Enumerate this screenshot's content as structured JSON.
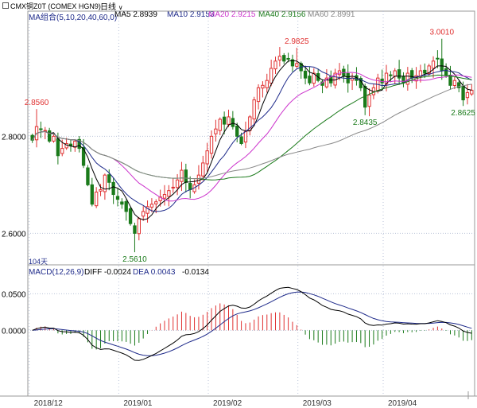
{
  "header": {
    "instrument": "CMX铜Z0T (COMEX HGN9)",
    "period": "日线",
    "period_arrow": "∨"
  },
  "ma_legend": [
    {
      "label": "MA组合(5,10,20,40,60,0)",
      "color": "#1e2a8a"
    },
    {
      "label": "MA5 2.8939",
      "color": "#000000"
    },
    {
      "label": "MA10 2.9153",
      "color": "#1e2a8a"
    },
    {
      "label": "MA20 2.9215",
      "color": "#cc33cc"
    },
    {
      "label": "MA40 2.9156",
      "color": "#1a7a1a"
    },
    {
      "label": "MA60 2.8991",
      "color": "#888888"
    }
  ],
  "macd_legend": [
    {
      "label": "MACD(12,26,9)",
      "color": "#1e2a8a"
    },
    {
      "label": "DIFF -0.0024",
      "color": "#000000"
    },
    {
      "label": "DEA 0.0043",
      "color": "#1e2a8a"
    },
    {
      "label": "-0.0134",
      "color": "#000000"
    }
  ],
  "price_axis": {
    "ticks": [
      "2.8000",
      "2.6000"
    ],
    "values": [
      2.8,
      2.6
    ],
    "ylim": [
      2.535,
      3.035
    ]
  },
  "macd_axis": {
    "ticks": [
      "0.0500",
      "0.0000"
    ],
    "values": [
      0.05,
      0.0
    ],
    "ylim": [
      -0.09,
      0.07
    ]
  },
  "x_axis": {
    "labels": [
      "2018/12",
      "2019/01",
      "2019/02",
      "2019/03",
      "2019/04"
    ],
    "label_index": [
      0,
      21,
      42,
      63,
      83
    ],
    "count": 104
  },
  "bar_count_label": "104天",
  "annotations": [
    {
      "text": "2.8560",
      "index": 1,
      "value": 2.856,
      "color": "#e03030",
      "pos": "above"
    },
    {
      "text": "2.5610",
      "index": 24,
      "value": 2.561,
      "color": "#1a7a1a",
      "pos": "below"
    },
    {
      "text": "2.9825",
      "index": 62,
      "value": 2.9825,
      "color": "#e03030",
      "pos": "above"
    },
    {
      "text": "2.8435",
      "index": 78,
      "value": 2.8435,
      "color": "#1a7a1a",
      "pos": "below"
    },
    {
      "text": "3.0010",
      "index": 96,
      "value": 3.001,
      "color": "#e03030",
      "pos": "above"
    },
    {
      "text": "2.8625",
      "index": 101,
      "value": 2.8625,
      "color": "#1a7a1a",
      "pos": "below"
    }
  ],
  "colors": {
    "up": "#e03030",
    "down": "#1a7a1a",
    "grid": "#b9c3d8",
    "axis": "#777777",
    "diff": "#000000",
    "dea": "#1e2a8a"
  },
  "chart_data": {
    "type": "candlestick",
    "title": "CMX铜Z0T (COMEX HGN9) 日线",
    "close": [
      2.792,
      2.82,
      2.815,
      2.812,
      2.79,
      2.8,
      2.76,
      2.775,
      2.785,
      2.78,
      2.79,
      2.775,
      2.74,
      2.7,
      2.66,
      2.685,
      2.69,
      2.72,
      2.705,
      2.68,
      2.67,
      2.66,
      2.645,
      2.62,
      2.6,
      2.63,
      2.645,
      2.655,
      2.66,
      2.665,
      2.675,
      2.68,
      2.688,
      2.695,
      2.71,
      2.73,
      2.705,
      2.69,
      2.7,
      2.72,
      2.745,
      2.77,
      2.8,
      2.815,
      2.835,
      2.825,
      2.84,
      2.82,
      2.8,
      2.785,
      2.81,
      2.84,
      2.875,
      2.9,
      2.905,
      2.915,
      2.94,
      2.955,
      2.965,
      2.955,
      2.96,
      2.945,
      2.95,
      2.935,
      2.92,
      2.91,
      2.93,
      2.915,
      2.905,
      2.92,
      2.91,
      2.93,
      2.935,
      2.925,
      2.91,
      2.92,
      2.915,
      2.9,
      2.86,
      2.885,
      2.9,
      2.92,
      2.91,
      2.93,
      2.925,
      2.935,
      2.92,
      2.91,
      2.93,
      2.92,
      2.925,
      2.935,
      2.93,
      2.945,
      2.955,
      2.96,
      2.935,
      2.925,
      2.905,
      2.915,
      2.9,
      2.875,
      2.89,
      2.895
    ],
    "series": [
      {
        "name": "MA5",
        "color": "#000000"
      },
      {
        "name": "MA10",
        "color": "#1e2a8a"
      },
      {
        "name": "MA20",
        "color": "#cc33cc"
      },
      {
        "name": "MA40",
        "color": "#1a7a1a"
      },
      {
        "name": "MA60",
        "color": "#888888"
      }
    ],
    "macd_series": [
      {
        "name": "DIFF",
        "color": "#000000"
      },
      {
        "name": "DEA",
        "color": "#1e2a8a"
      }
    ]
  }
}
